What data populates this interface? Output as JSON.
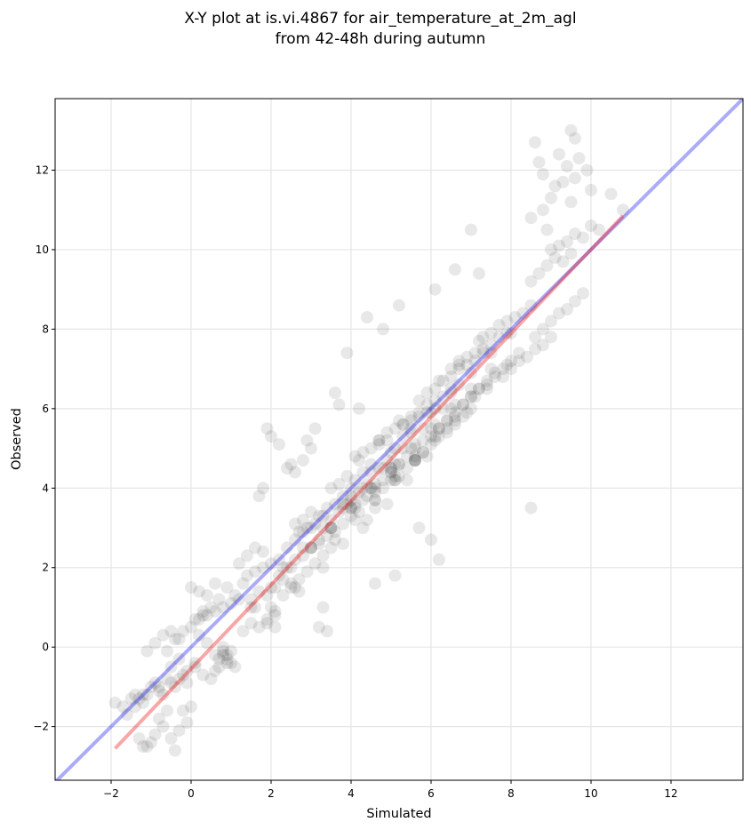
{
  "chart_data": {
    "type": "scatter",
    "title_lines": [
      "X-Y plot at is.vi.4867 for air_temperature_at_2m_agl",
      "from 42-48h during autumn"
    ],
    "xlabel": "Simulated",
    "ylabel": "Observed",
    "xlim": [
      -3.4,
      13.8
    ],
    "ylim": [
      -3.35,
      13.8
    ],
    "xticks": [
      -2,
      0,
      2,
      4,
      6,
      8,
      10,
      12
    ],
    "yticks": [
      -2,
      0,
      2,
      4,
      6,
      8,
      10,
      12
    ],
    "tick_labels_x": [
      "−2",
      "0",
      "2",
      "4",
      "6",
      "8",
      "10",
      "12"
    ],
    "tick_labels_y": [
      "−2",
      "0",
      "2",
      "4",
      "6",
      "8",
      "10",
      "12"
    ],
    "grid": true,
    "colors": {
      "points": "#000000",
      "identity_line": "#0000ee",
      "fit_line": "#ee0000",
      "grid": "#e6e6e6"
    },
    "point_alpha": 0.09,
    "identity_line": {
      "x": [
        -3.4,
        13.8
      ],
      "y": [
        -3.4,
        13.8
      ]
    },
    "fit_line": {
      "x": [
        -1.9,
        10.8
      ],
      "y": [
        -2.55,
        10.85
      ]
    },
    "points": {
      "x": [
        -1.9,
        -1.7,
        -1.5,
        -1.4,
        -1.3,
        -1.2,
        -1.1,
        -1.0,
        -0.9,
        -0.8,
        -0.7,
        -0.6,
        -0.5,
        -0.4,
        -0.3,
        -0.2,
        -1.3,
        -1.1,
        -0.9,
        -0.7,
        -0.5,
        -0.3,
        -0.1,
        -1.2,
        -1.0,
        -0.8,
        -0.6,
        -0.4,
        -0.2,
        0.0,
        -0.5,
        -0.3,
        -0.1,
        0.1,
        -1.1,
        -0.9,
        -0.7,
        -0.5,
        -0.3,
        0.0,
        0.2,
        0.4,
        0.6,
        0.8,
        0.9,
        1.0,
        1.1,
        0.7,
        0.8,
        0.9,
        1.0,
        0.8,
        0.9,
        0.7,
        0.6,
        0.5,
        0.3,
        0.1,
        -0.1,
        0.2,
        0.4,
        0.6,
        0.8,
        1.0,
        1.2,
        0.0,
        0.2,
        0.4,
        0.6,
        1.4,
        1.6,
        1.8,
        2.0,
        2.2,
        1.5,
        1.7,
        1.9,
        2.1,
        2.3,
        2.5,
        1.2,
        1.4,
        1.6,
        1.8,
        1.3,
        1.5,
        1.7,
        1.9,
        2.1,
        2.4,
        2.6,
        2.8,
        3.0,
        2.2,
        2.4,
        2.6,
        2.8,
        3.0,
        3.2,
        2.0,
        2.3,
        2.5,
        2.7,
        2.9,
        3.1,
        3.3,
        3.5,
        2.6,
        2.8,
        3.0,
        3.2,
        3.4,
        3.6,
        3.8,
        4.0,
        2.7,
        2.9,
        3.1,
        3.3,
        3.5,
        3.7,
        3.9,
        4.1,
        4.3,
        3.2,
        3.4,
        3.6,
        3.8,
        4.0,
        4.2,
        4.4,
        4.6,
        3.5,
        3.7,
        3.9,
        4.1,
        4.3,
        4.5,
        4.7,
        4.9,
        3.8,
        4.0,
        4.2,
        4.4,
        4.6,
        4.8,
        5.0,
        5.2,
        4.1,
        4.3,
        4.5,
        4.7,
        4.9,
        5.1,
        5.3,
        5.5,
        4.4,
        4.6,
        4.8,
        5.0,
        5.2,
        5.4,
        5.6,
        5.8,
        4.7,
        4.9,
        5.1,
        5.3,
        5.5,
        5.7,
        5.9,
        6.1,
        5.0,
        5.2,
        5.4,
        5.6,
        5.8,
        6.0,
        6.2,
        6.4,
        5.3,
        5.5,
        5.7,
        5.9,
        6.1,
        6.3,
        6.5,
        6.7,
        5.6,
        5.8,
        6.0,
        6.2,
        6.4,
        6.6,
        6.8,
        7.0,
        5.9,
        6.1,
        6.3,
        6.5,
        6.7,
        6.9,
        7.1,
        7.3,
        6.2,
        6.4,
        6.6,
        6.8,
        7.0,
        7.2,
        7.4,
        7.6,
        6.5,
        6.7,
        6.9,
        7.1,
        7.3,
        7.5,
        7.7,
        7.9,
        6.8,
        7.0,
        7.2,
        7.4,
        7.6,
        7.8,
        8.0,
        8.2,
        7.3,
        7.5,
        7.7,
        7.9,
        8.1,
        8.3,
        8.5,
        7.8,
        8.0,
        8.2,
        8.4,
        8.6,
        8.8,
        9.0,
        8.5,
        8.7,
        8.9,
        9.1,
        9.3,
        9.5,
        8.6,
        8.8,
        9.0,
        9.2,
        9.4,
        9.6,
        9.8,
        9.0,
        9.2,
        9.4,
        9.6,
        9.8,
        10.0,
        10.2,
        8.8,
        9.0,
        9.3,
        9.6,
        9.9,
        10.5,
        10.8,
        8.6,
        8.7,
        8.8,
        9.2,
        9.5,
        9.6,
        9.7,
        8.5,
        8.9,
        9.1,
        9.4,
        9.5,
        10.0,
        4.4,
        4.8,
        3.9,
        3.6,
        7.0,
        3.7,
        4.2,
        5.2,
        6.6,
        6.1,
        7.2,
        8.5,
        6.2,
        6.0,
        5.7,
        5.1,
        4.6,
        2.6,
        2.1,
        1.6,
        3.2,
        3.4,
        3.3,
        2.4,
        2.5,
        2.6,
        2.8,
        3.0,
        1.7,
        1.8,
        2.9,
        3.1,
        2.0,
        2.2,
        1.9,
        4.0,
        4.5,
        5.0,
        5.5,
        6.0,
        6.5,
        7.0,
        7.5,
        8.0,
        3.5,
        4.0,
        4.5,
        5.0,
        5.5,
        6.0,
        6.5,
        7.0,
        7.5,
        4.2,
        4.7,
        5.2,
        5.7,
        6.2,
        6.7,
        7.2,
        3.0,
        3.5,
        4.1,
        4.6,
        5.1,
        5.6,
        6.1,
        6.6,
        2.3,
        2.8,
        3.3,
        3.8,
        4.3,
        4.8,
        5.3,
        5.8,
        6.3,
        1.5,
        2.0,
        2.5,
        3.0,
        3.5,
        4.0,
        4.5,
        5.0,
        0.3,
        0.5,
        0.7,
        0.9,
        1.1,
        1.3,
        -0.6,
        -0.4,
        -0.2,
        0.1,
        0.3,
        -1.6,
        -1.4,
        -1.2,
        -0.8,
        1.9,
        2.1,
        2.7,
        3.3,
        3.8,
        4.3,
        4.9,
        5.4,
        5.9,
        6.4,
        6.9,
        7.4,
        7.9,
        5.1,
        5.6,
        6.1,
        6.6,
        7.1,
        4.6,
        5.1,
        5.6,
        6.1,
        6.6,
        3.6,
        4.1,
        4.6,
        5.1,
        5.6
      ],
      "y": [
        -1.4,
        -1.5,
        -1.3,
        -1.2,
        -1.3,
        -1.4,
        -1.2,
        -1.0,
        -0.9,
        -1.1,
        -1.2,
        -0.8,
        -0.9,
        -1.0,
        -0.8,
        -0.7,
        -2.3,
        -2.5,
        -2.2,
        -2.0,
        -2.3,
        -2.1,
        -1.9,
        -2.5,
        -2.4,
        -1.8,
        -1.6,
        -2.6,
        -1.6,
        -1.5,
        -0.5,
        -0.3,
        -0.6,
        -0.4,
        -0.1,
        0.1,
        0.3,
        0.4,
        0.2,
        0.5,
        0.3,
        0.1,
        -0.2,
        -0.1,
        -0.3,
        -0.4,
        -0.5,
        -0.3,
        -0.2,
        -0.4,
        -0.1,
        0.0,
        -0.2,
        -0.5,
        -0.6,
        -0.8,
        -0.7,
        -0.5,
        -0.9,
        0.7,
        0.8,
        0.9,
        1.0,
        1.1,
        1.2,
        1.5,
        1.4,
        1.3,
        1.6,
        1.8,
        1.9,
        2.0,
        2.1,
        2.2,
        1.2,
        1.4,
        1.3,
        1.5,
        1.7,
        1.6,
        2.1,
        2.3,
        2.5,
        2.4,
        0.4,
        0.6,
        0.5,
        0.7,
        0.8,
        2.5,
        2.7,
        2.9,
        3.0,
        1.8,
        2.0,
        2.2,
        2.3,
        2.5,
        2.7,
        1.0,
        1.3,
        1.5,
        1.7,
        1.9,
        2.1,
        2.3,
        2.5,
        3.1,
        3.2,
        3.4,
        3.3,
        3.5,
        3.6,
        3.8,
        3.7,
        2.9,
        3.0,
        3.1,
        3.3,
        3.2,
        3.4,
        3.6,
        3.5,
        3.7,
        2.6,
        2.8,
        2.9,
        3.1,
        3.3,
        3.4,
        3.2,
        3.5,
        4.0,
        4.1,
        4.3,
        4.2,
        4.4,
        4.6,
        4.5,
        4.7,
        3.6,
        3.8,
        3.9,
        4.1,
        4.0,
        4.2,
        4.4,
        4.6,
        4.8,
        4.9,
        5.0,
        5.1,
        5.2,
        5.0,
        5.3,
        5.5,
        3.8,
        3.9,
        4.0,
        4.2,
        4.3,
        4.5,
        4.7,
        4.9,
        5.2,
        5.4,
        5.5,
        5.6,
        5.7,
        5.8,
        5.9,
        6.0,
        4.4,
        4.6,
        4.8,
        5.0,
        5.2,
        5.3,
        5.5,
        5.7,
        5.6,
        5.8,
        5.9,
        6.1,
        6.2,
        6.3,
        6.5,
        6.6,
        4.7,
        4.9,
        5.1,
        5.3,
        5.5,
        5.6,
        5.8,
        6.0,
        6.4,
        6.5,
        6.7,
        6.8,
        7.0,
        7.1,
        7.2,
        7.4,
        5.5,
        5.7,
        5.9,
        6.1,
        6.3,
        6.5,
        6.6,
        6.8,
        7.0,
        7.1,
        7.3,
        7.4,
        7.5,
        7.6,
        7.8,
        7.9,
        6.1,
        6.3,
        6.5,
        6.7,
        6.9,
        7.0,
        7.2,
        7.4,
        7.8,
        7.9,
        8.1,
        8.2,
        8.3,
        8.4,
        8.6,
        6.8,
        7.0,
        7.2,
        7.3,
        7.5,
        7.6,
        7.8,
        9.2,
        9.4,
        9.6,
        9.8,
        9.7,
        9.9,
        7.8,
        8.0,
        8.2,
        8.4,
        8.5,
        8.7,
        8.9,
        10.0,
        10.1,
        10.2,
        10.4,
        10.3,
        10.6,
        10.5,
        11.0,
        11.3,
        11.7,
        11.8,
        12.0,
        11.4,
        11.0,
        12.7,
        12.2,
        11.9,
        12.4,
        13.0,
        12.8,
        12.3,
        10.8,
        10.5,
        11.6,
        12.1,
        11.2,
        11.5,
        8.3,
        8.0,
        7.4,
        6.4,
        10.5,
        6.1,
        6.0,
        8.6,
        9.5,
        9.0,
        9.4,
        3.5,
        2.2,
        2.7,
        3.0,
        1.8,
        1.6,
        1.5,
        0.5,
        1.0,
        0.5,
        0.4,
        1.0,
        4.5,
        4.6,
        4.4,
        4.7,
        5.0,
        3.8,
        4.0,
        5.2,
        5.5,
        5.3,
        5.1,
        5.5,
        4.0,
        4.4,
        4.9,
        5.4,
        5.9,
        6.4,
        6.9,
        7.4,
        7.9,
        3.0,
        3.5,
        4.0,
        4.5,
        5.0,
        5.5,
        6.0,
        6.5,
        7.0,
        4.7,
        5.2,
        5.7,
        6.2,
        6.7,
        7.2,
        7.7,
        2.5,
        3.0,
        3.6,
        4.1,
        4.6,
        5.1,
        5.6,
        6.1,
        2.0,
        2.5,
        3.0,
        3.5,
        4.0,
        4.5,
        5.0,
        5.5,
        6.0,
        1.0,
        1.5,
        2.0,
        2.5,
        3.0,
        3.5,
        4.0,
        4.5,
        0.8,
        1.0,
        1.2,
        1.5,
        1.3,
        1.6,
        -0.1,
        0.2,
        0.4,
        0.7,
        0.9,
        -1.7,
        -1.5,
        -1.2,
        -1.0,
        0.6,
        0.9,
        1.4,
        2.0,
        2.6,
        3.0,
        3.6,
        4.2,
        4.8,
        5.4,
        5.9,
        6.5,
        7.1,
        4.3,
        4.8,
        5.3,
        5.8,
        6.3,
        3.7,
        4.2,
        4.7,
        5.2,
        5.7,
        2.7,
        3.2,
        3.7,
        4.2,
        4.7
      ]
    }
  }
}
